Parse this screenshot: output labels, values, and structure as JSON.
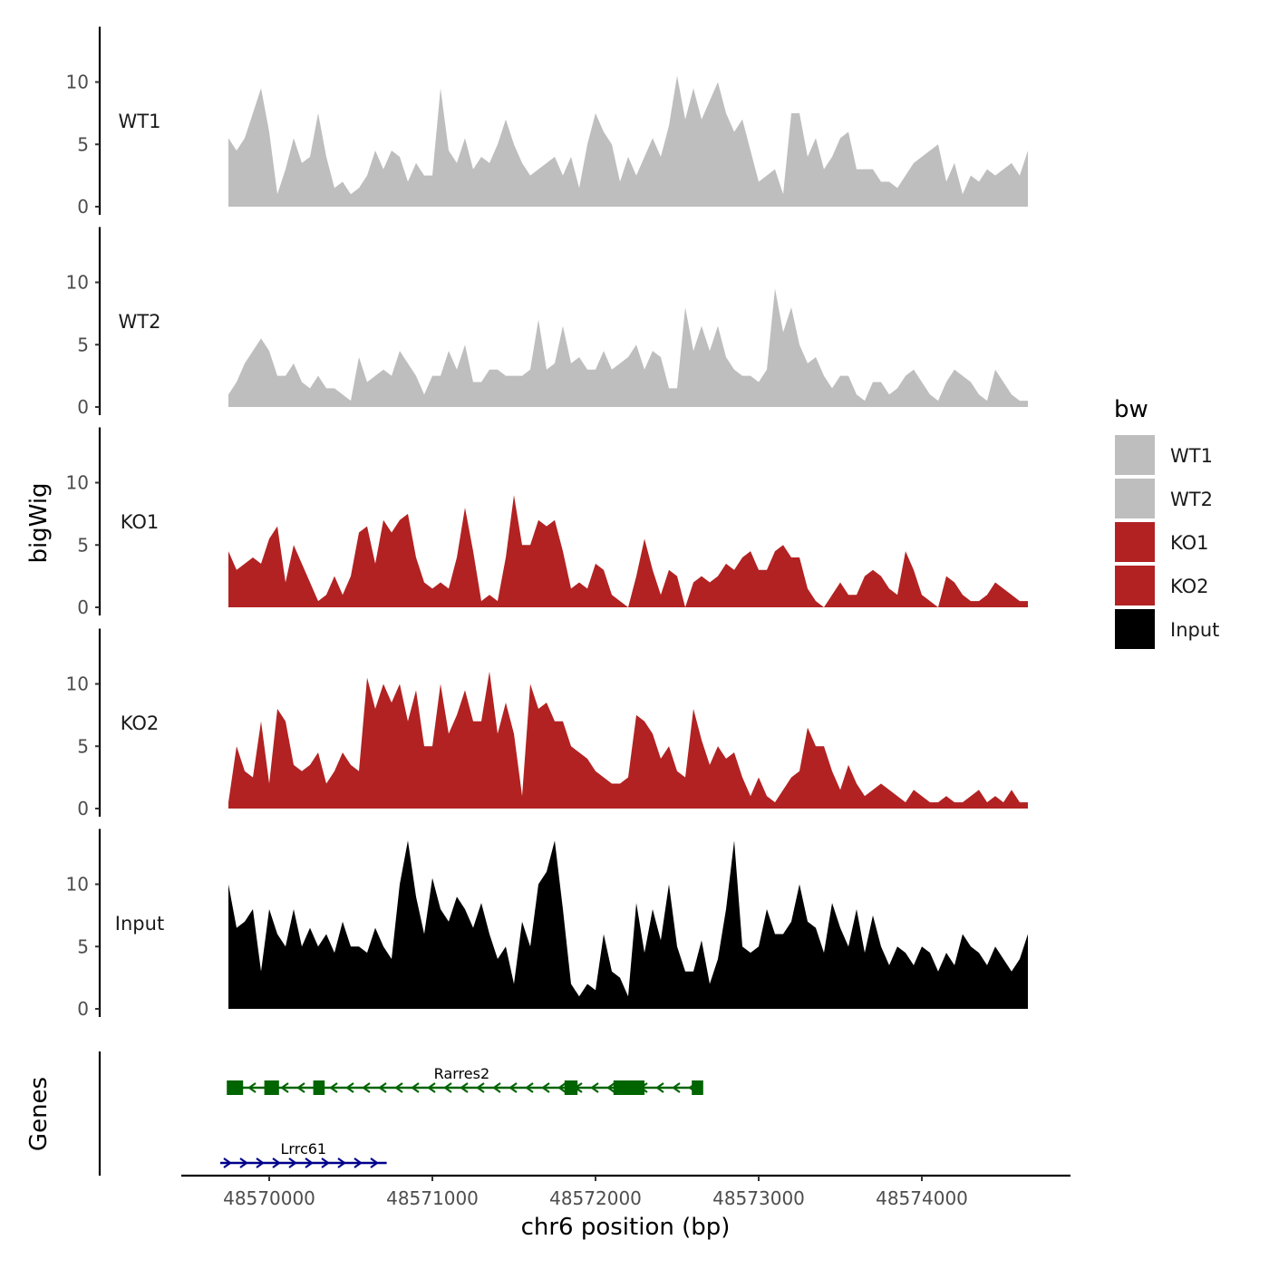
{
  "chart_data": {
    "type": "area",
    "title": "",
    "xlabel": "chr6 position (bp)",
    "ylabel_tracks": "bigWig",
    "ylabel_genes": "Genes",
    "xlim": [
      48569480,
      48574880
    ],
    "ylim": [
      0,
      14
    ],
    "x_ticks": [
      48570000,
      48571000,
      48572000,
      48573000,
      48574000
    ],
    "x_tick_labels": [
      "48570000",
      "48571000",
      "48572000",
      "48573000",
      "48574000"
    ],
    "y_ticks": [
      0,
      5,
      10
    ],
    "y_tick_labels": [
      "0",
      "5",
      "10"
    ],
    "legend": {
      "title": "bw",
      "position": "right",
      "entries": [
        {
          "name": "WT1",
          "color": "#bebebe"
        },
        {
          "name": "WT2",
          "color": "#bebebe"
        },
        {
          "name": "KO1",
          "color": "#b22222"
        },
        {
          "name": "KO2",
          "color": "#b22222"
        },
        {
          "name": "Input",
          "color": "#000000"
        }
      ]
    },
    "x": [
      48569750,
      48569800,
      48569850,
      48569900,
      48569950,
      48570000,
      48570050,
      48570100,
      48570150,
      48570200,
      48570250,
      48570300,
      48570350,
      48570400,
      48570450,
      48570500,
      48570550,
      48570600,
      48570650,
      48570700,
      48570750,
      48570800,
      48570850,
      48570900,
      48570950,
      48571000,
      48571050,
      48571100,
      48571150,
      48571200,
      48571250,
      48571300,
      48571350,
      48571400,
      48571450,
      48571500,
      48571550,
      48571600,
      48571650,
      48571700,
      48571750,
      48571800,
      48571850,
      48571900,
      48571950,
      48572000,
      48572050,
      48572100,
      48572150,
      48572200,
      48572250,
      48572300,
      48572350,
      48572400,
      48572450,
      48572500,
      48572550,
      48572600,
      48572650,
      48572700,
      48572750,
      48572800,
      48572850,
      48572900,
      48572950,
      48573000,
      48573050,
      48573100,
      48573150,
      48573200,
      48573250,
      48573300,
      48573350,
      48573400,
      48573450,
      48573500,
      48573550,
      48573600,
      48573650,
      48573700,
      48573750,
      48573800,
      48573850,
      48573900,
      48573950,
      48574000,
      48574050,
      48574100,
      48574150,
      48574200,
      48574250,
      48574300,
      48574350,
      48574400,
      48574450,
      48574500,
      48574550,
      48574600,
      48574650
    ],
    "series": [
      {
        "name": "WT1",
        "color": "#bebebe",
        "values": [
          5.5,
          4.5,
          5.5,
          7.5,
          9.5,
          6.0,
          1.0,
          3.0,
          5.5,
          3.5,
          4.0,
          7.5,
          4.0,
          1.5,
          2.0,
          1.0,
          1.5,
          2.5,
          4.5,
          3.0,
          4.5,
          4.0,
          2.0,
          3.5,
          2.5,
          2.5,
          9.5,
          4.5,
          3.5,
          5.5,
          3.0,
          4.0,
          3.5,
          5.0,
          7.0,
          5.0,
          3.5,
          2.5,
          3.0,
          3.5,
          4.0,
          2.5,
          4.0,
          1.5,
          5.0,
          7.5,
          6.0,
          5.0,
          2.0,
          4.0,
          2.5,
          4.0,
          5.5,
          4.0,
          6.5,
          10.5,
          7.0,
          9.5,
          7.0,
          8.5,
          10.0,
          7.5,
          6.0,
          7.0,
          4.5,
          2.0,
          2.5,
          3.0,
          1.0,
          7.5,
          7.5,
          4.0,
          5.5,
          3.0,
          4.0,
          5.5,
          6.0,
          3.0,
          3.0,
          3.0,
          2.0,
          2.0,
          1.5,
          2.5,
          3.5,
          4.0,
          4.5,
          5.0,
          2.0,
          3.5,
          1.0,
          2.5,
          2.0,
          3.0,
          2.5,
          3.0,
          3.5,
          2.5,
          4.5
        ]
      },
      {
        "name": "WT2",
        "color": "#bebebe",
        "values": [
          1.0,
          2.0,
          3.5,
          4.5,
          5.5,
          4.5,
          2.5,
          2.5,
          3.5,
          2.0,
          1.5,
          2.5,
          1.5,
          1.5,
          1.0,
          0.5,
          4.0,
          2.0,
          2.5,
          3.0,
          2.5,
          4.5,
          3.5,
          2.5,
          1.0,
          2.5,
          2.5,
          4.5,
          3.0,
          5.0,
          2.0,
          2.0,
          3.0,
          3.0,
          2.5,
          2.5,
          2.5,
          3.0,
          7.0,
          3.0,
          3.5,
          6.5,
          3.5,
          4.0,
          3.0,
          3.0,
          4.5,
          3.0,
          3.5,
          4.0,
          5.0,
          3.0,
          4.5,
          4.0,
          1.5,
          1.5,
          8.0,
          4.5,
          6.5,
          4.5,
          6.5,
          4.0,
          3.0,
          2.5,
          2.5,
          2.0,
          3.0,
          9.5,
          6.0,
          8.0,
          5.0,
          3.5,
          4.0,
          2.5,
          1.5,
          2.5,
          2.5,
          1.0,
          0.5,
          2.0,
          2.0,
          1.0,
          1.5,
          2.5,
          3.0,
          2.0,
          1.0,
          0.5,
          2.0,
          3.0,
          2.5,
          2.0,
          1.0,
          0.5,
          3.0,
          2.0,
          1.0,
          0.5,
          0.5
        ]
      },
      {
        "name": "KO1",
        "color": "#b22222",
        "values": [
          4.5,
          3.0,
          3.5,
          4.0,
          3.5,
          5.5,
          6.5,
          2.0,
          5.0,
          3.5,
          2.0,
          0.5,
          1.0,
          2.5,
          1.0,
          2.5,
          6.0,
          6.5,
          3.5,
          7.0,
          6.0,
          7.0,
          7.5,
          4.0,
          2.0,
          1.5,
          2.0,
          1.5,
          4.0,
          8.0,
          4.5,
          0.5,
          1.0,
          0.5,
          4.0,
          9.0,
          5.0,
          5.0,
          7.0,
          6.5,
          7.0,
          4.5,
          1.5,
          2.0,
          1.5,
          3.5,
          3.0,
          1.0,
          0.5,
          0.0,
          2.5,
          5.5,
          3.0,
          1.0,
          3.0,
          2.5,
          0.0,
          2.0,
          2.5,
          2.0,
          2.5,
          3.5,
          3.0,
          4.0,
          4.5,
          3.0,
          3.0,
          4.5,
          5.0,
          4.0,
          4.0,
          1.5,
          0.5,
          0.0,
          1.0,
          2.0,
          1.0,
          1.0,
          2.5,
          3.0,
          2.5,
          1.5,
          1.0,
          4.5,
          3.0,
          1.0,
          0.5,
          0.0,
          2.5,
          2.0,
          1.0,
          0.5,
          0.5,
          1.0,
          2.0,
          1.5,
          1.0,
          0.5,
          0.5
        ]
      },
      {
        "name": "KO2",
        "color": "#b22222",
        "values": [
          0.5,
          5.0,
          3.0,
          2.5,
          7.0,
          2.0,
          8.0,
          7.0,
          3.5,
          3.0,
          3.5,
          4.5,
          2.0,
          3.0,
          4.5,
          3.5,
          3.0,
          10.5,
          8.0,
          10.0,
          8.5,
          10.0,
          7.0,
          9.5,
          5.0,
          5.0,
          10.0,
          6.0,
          7.5,
          9.5,
          7.0,
          7.0,
          11.0,
          6.0,
          8.5,
          6.0,
          1.0,
          10.0,
          8.0,
          8.5,
          7.0,
          7.0,
          5.0,
          4.5,
          4.0,
          3.0,
          2.5,
          2.0,
          2.0,
          2.5,
          7.5,
          7.0,
          6.0,
          4.0,
          5.0,
          3.0,
          2.5,
          8.0,
          5.5,
          3.5,
          5.0,
          4.0,
          4.5,
          2.5,
          1.0,
          2.5,
          1.0,
          0.5,
          1.5,
          2.5,
          3.0,
          6.5,
          5.0,
          5.0,
          3.0,
          1.5,
          3.5,
          2.0,
          1.0,
          1.5,
          2.0,
          1.5,
          1.0,
          0.5,
          1.5,
          1.0,
          0.5,
          0.5,
          1.0,
          0.5,
          0.5,
          1.0,
          1.5,
          0.5,
          1.0,
          0.5,
          1.5,
          0.5,
          0.5
        ]
      },
      {
        "name": "Input",
        "color": "#000000",
        "values": [
          10.0,
          6.5,
          7.0,
          8.0,
          3.0,
          8.0,
          6.0,
          5.0,
          8.0,
          5.0,
          6.5,
          5.0,
          6.0,
          4.5,
          7.0,
          5.0,
          5.0,
          4.5,
          6.5,
          5.0,
          4.0,
          10.0,
          13.5,
          9.0,
          6.0,
          10.5,
          8.0,
          7.0,
          9.0,
          8.0,
          6.5,
          8.5,
          6.0,
          4.0,
          5.0,
          2.0,
          7.0,
          5.0,
          10.0,
          11.0,
          13.5,
          8.0,
          2.0,
          1.0,
          2.0,
          1.5,
          6.0,
          3.0,
          2.5,
          1.0,
          8.5,
          4.5,
          8.0,
          5.5,
          10.0,
          5.0,
          3.0,
          3.0,
          5.5,
          2.0,
          4.0,
          8.0,
          13.5,
          5.0,
          4.5,
          5.0,
          8.0,
          6.0,
          6.0,
          7.0,
          10.0,
          7.0,
          6.5,
          4.5,
          8.5,
          6.5,
          5.0,
          8.0,
          4.5,
          7.5,
          5.0,
          3.5,
          5.0,
          4.5,
          3.5,
          5.0,
          4.5,
          3.0,
          4.5,
          3.5,
          6.0,
          5.0,
          4.5,
          3.5,
          5.0,
          4.0,
          3.0,
          4.0,
          6.0
        ]
      }
    ],
    "genes": [
      {
        "name": "Rarres2",
        "strand": "-",
        "start": 48569750,
        "end": 48572650,
        "label_x": 48571180,
        "color": "#006400",
        "exons": [
          [
            48569740,
            48569840
          ],
          [
            48569970,
            48570060
          ],
          [
            48570270,
            48570340
          ],
          [
            48571810,
            48571890
          ],
          [
            48572110,
            48572300
          ],
          [
            48572590,
            48572660
          ]
        ]
      },
      {
        "name": "Lrrc61",
        "strand": "+",
        "start": 48569700,
        "end": 48570720,
        "label_x": 48570210,
        "color": "#00008b",
        "exons": []
      }
    ]
  }
}
